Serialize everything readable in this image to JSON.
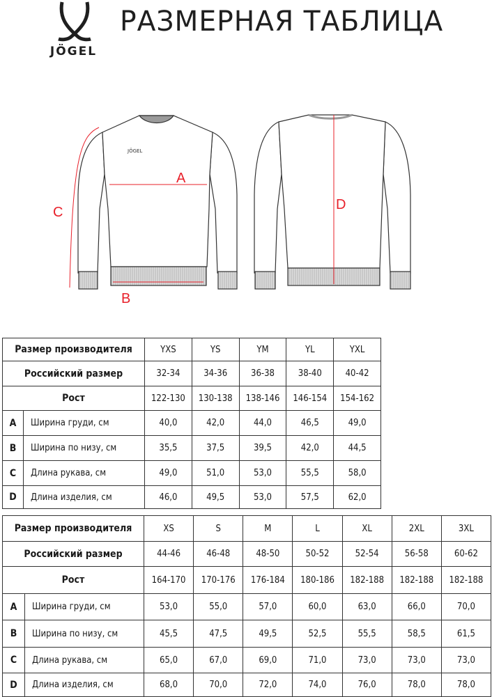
{
  "header": {
    "brand": "JÖGEL",
    "title": "РАЗМЕРНАЯ ТАБЛИЦА"
  },
  "diagram": {
    "labels": {
      "a": "A",
      "b": "B",
      "c": "C",
      "d": "D"
    },
    "measure_color": "#e8202a"
  },
  "tables": [
    {
      "header_label": "Размер производителя",
      "sizes": [
        "YXS",
        "YS",
        "YM",
        "YL",
        "YXL"
      ],
      "russian_label": "Российский размер",
      "russian": [
        "32-34",
        "34-36",
        "36-38",
        "38-40",
        "40-42"
      ],
      "height_label": "Рост",
      "heights": [
        "122-130",
        "130-138",
        "138-146",
        "146-154",
        "154-162"
      ],
      "rows": [
        {
          "letter": "A",
          "label": "Ширина груди, см",
          "values": [
            "40,0",
            "42,0",
            "44,0",
            "46,5",
            "49,0"
          ]
        },
        {
          "letter": "B",
          "label": "Ширина по низу, см",
          "values": [
            "35,5",
            "37,5",
            "39,5",
            "42,0",
            "44,5"
          ]
        },
        {
          "letter": "C",
          "label": "Длина рукава, см",
          "values": [
            "49,0",
            "51,0",
            "53,0",
            "55,5",
            "58,0"
          ]
        },
        {
          "letter": "D",
          "label": "Длина изделия, см",
          "values": [
            "46,0",
            "49,5",
            "53,0",
            "57,5",
            "62,0"
          ]
        }
      ]
    },
    {
      "header_label": "Размер производителя",
      "sizes": [
        "XS",
        "S",
        "M",
        "L",
        "XL",
        "2XL",
        "3XL"
      ],
      "russian_label": "Российский размер",
      "russian": [
        "44-46",
        "46-48",
        "48-50",
        "50-52",
        "52-54",
        "56-58",
        "60-62"
      ],
      "height_label": "Рост",
      "heights": [
        "164-170",
        "170-176",
        "176-184",
        "180-186",
        "182-188",
        "182-188",
        "182-188"
      ],
      "rows": [
        {
          "letter": "A",
          "label": "Ширина груди, см",
          "values": [
            "53,0",
            "55,0",
            "57,0",
            "60,0",
            "63,0",
            "66,0",
            "70,0"
          ]
        },
        {
          "letter": "B",
          "label": "Ширина по низу, см",
          "values": [
            "45,5",
            "47,5",
            "49,5",
            "52,5",
            "55,5",
            "58,5",
            "61,5"
          ]
        },
        {
          "letter": "C",
          "label": "Длина рукава, см",
          "values": [
            "65,0",
            "67,0",
            "69,0",
            "71,0",
            "73,0",
            "73,0",
            "73,0"
          ]
        },
        {
          "letter": "D",
          "label": "Длина изделия, см",
          "values": [
            "68,0",
            "70,0",
            "72,0",
            "74,0",
            "76,0",
            "78,0",
            "78,0"
          ]
        }
      ]
    }
  ]
}
